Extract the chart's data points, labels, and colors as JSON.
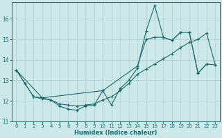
{
  "xlabel": "Humidex (Indice chaleur)",
  "background_color": "#cde8e8",
  "line_color": "#1a6b6b",
  "grid_color": "#b0d0d0",
  "xlim": [
    -0.5,
    23.5
  ],
  "ylim": [
    11.0,
    16.8
  ],
  "yticks": [
    11,
    12,
    13,
    14,
    15,
    16
  ],
  "xticks": [
    0,
    1,
    2,
    3,
    4,
    5,
    6,
    7,
    8,
    9,
    10,
    11,
    12,
    13,
    14,
    15,
    16,
    17,
    18,
    19,
    20,
    21,
    22,
    23
  ],
  "curve1_x": [
    0,
    1,
    2,
    3,
    4,
    5,
    6,
    7,
    8,
    9,
    10,
    11,
    12,
    13,
    14,
    15,
    16,
    17,
    18,
    19,
    20,
    21,
    22
  ],
  "curve1_y": [
    13.5,
    12.85,
    12.2,
    12.1,
    12.05,
    11.75,
    11.6,
    11.55,
    11.75,
    11.8,
    12.5,
    11.8,
    12.6,
    13.0,
    13.6,
    15.4,
    16.65,
    15.1,
    14.95,
    15.35,
    15.35,
    13.35,
    13.8
  ],
  "curve2_x": [
    0,
    1,
    2,
    3,
    4,
    5,
    6,
    7,
    8,
    9,
    10,
    11,
    12,
    13,
    14,
    15,
    16,
    17,
    18,
    19,
    20,
    21,
    22,
    23
  ],
  "curve2_y": [
    13.5,
    12.85,
    12.2,
    12.15,
    12.05,
    11.85,
    11.8,
    11.75,
    11.8,
    11.85,
    12.05,
    12.2,
    12.5,
    12.85,
    13.3,
    13.55,
    13.8,
    14.05,
    14.3,
    14.6,
    14.85,
    15.0,
    15.3,
    13.75
  ],
  "curve3_x": [
    0,
    3,
    10,
    14,
    15,
    16,
    17,
    18,
    19,
    20,
    21,
    22,
    23
  ],
  "curve3_y": [
    13.5,
    12.15,
    12.5,
    13.7,
    15.0,
    15.1,
    15.1,
    14.95,
    15.35,
    15.35,
    13.35,
    13.8,
    13.75
  ]
}
